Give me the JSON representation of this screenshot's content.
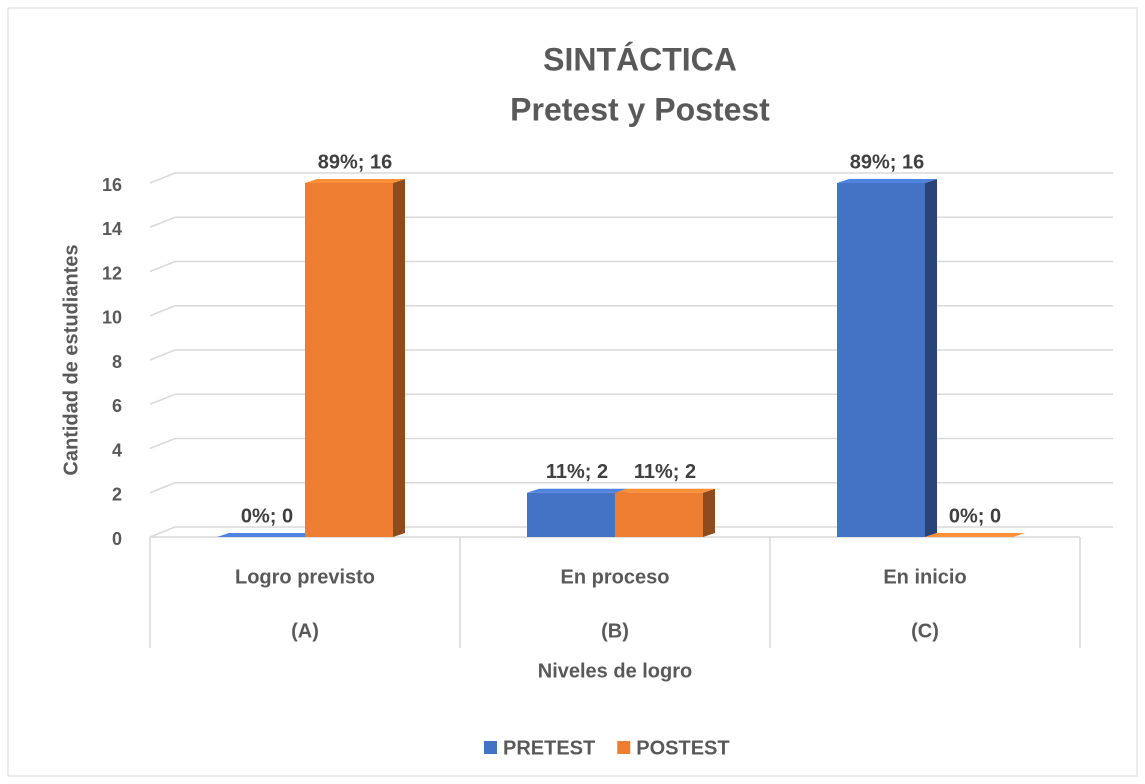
{
  "chart_data": {
    "type": "bar3d",
    "title": "SINTÁCTICA",
    "subtitle": "Pretest y Postest",
    "categories": [
      "Logro previsto",
      "En proceso",
      "En inicio"
    ],
    "category_codes": [
      "(A)",
      "(B)",
      "(C)"
    ],
    "x_label": "Niveles de logro",
    "y_label": "Cantidad de estudiantes",
    "series": [
      {
        "name": "PRETEST",
        "color": "#4472c4",
        "values": [
          0,
          2,
          16
        ],
        "value_labels": [
          "0%; 0",
          "11%; 2",
          "89%; 16"
        ]
      },
      {
        "name": "POSTEST",
        "color": "#ed7d31",
        "values": [
          16,
          2,
          0
        ],
        "value_labels": [
          "89%; 16",
          "11%; 2",
          "0%; 0"
        ]
      }
    ],
    "ylim": [
      0,
      16
    ],
    "yticks": [
      0,
      2,
      4,
      6,
      8,
      10,
      12,
      14,
      16
    ],
    "grid": true,
    "legend": "bottom"
  }
}
